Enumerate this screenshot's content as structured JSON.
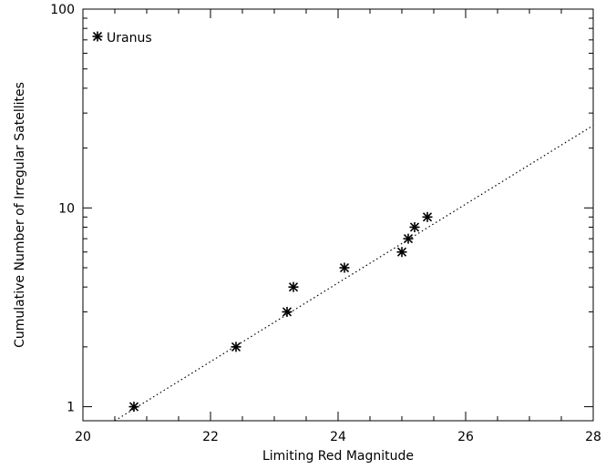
{
  "chart_data": {
    "type": "scatter",
    "title": "",
    "xlabel": "Limiting Red Magnitude",
    "ylabel": "Cumulative Number of Irregular Satellites",
    "xlim": [
      20,
      28
    ],
    "ylim": [
      0.85,
      100
    ],
    "yscale": "log",
    "x_ticks": [
      20,
      22,
      24,
      26,
      28
    ],
    "x_tick_labels": [
      "20",
      "22",
      "24",
      "26",
      "28"
    ],
    "y_ticks": [
      1,
      10,
      100
    ],
    "y_tick_labels": [
      "1",
      "10",
      "100"
    ],
    "legend": {
      "position": "top-left",
      "entries": [
        "Uranus"
      ]
    },
    "series": [
      {
        "name": "Uranus",
        "marker": "asterisk",
        "x": [
          20.8,
          22.4,
          23.2,
          23.3,
          24.1,
          25.0,
          25.1,
          25.2,
          25.4
        ],
        "y": [
          1,
          2,
          3,
          4,
          5,
          6,
          7,
          8,
          9
        ]
      }
    ],
    "fit_line": {
      "style": "dotted",
      "x": [
        20.5,
        28.0
      ],
      "y": [
        0.85,
        26
      ]
    }
  }
}
